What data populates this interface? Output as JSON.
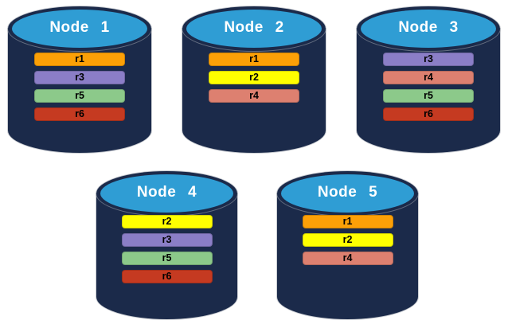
{
  "diagram": {
    "description": "Database nodes with replica placement",
    "colors": {
      "cylinder_body": "#1B2A4A",
      "cylinder_cap": "#2F9DD4",
      "cap_text": "#FFFFFF",
      "bar_text": "#000000",
      "background": "#FFFFFF"
    },
    "replica_colors": {
      "r1": "#FCA007",
      "r2": "#FFFF00",
      "r3": "#8B7EC7",
      "r4": "#DD8070",
      "r5": "#8CC98A",
      "r6": "#C53A21"
    },
    "nodes": [
      {
        "id": "node-1",
        "label": "Node 1",
        "row": 1,
        "replicas": [
          "r1",
          "r3",
          "r5",
          "r6"
        ]
      },
      {
        "id": "node-2",
        "label": "Node 2",
        "row": 1,
        "replicas": [
          "r1",
          "r2",
          "r4"
        ]
      },
      {
        "id": "node-3",
        "label": "Node 3",
        "row": 1,
        "replicas": [
          "r3",
          "r4",
          "r5",
          "r6"
        ]
      },
      {
        "id": "node-4",
        "label": "Node 4",
        "row": 2,
        "replicas": [
          "r2",
          "r3",
          "r5",
          "r6"
        ]
      },
      {
        "id": "node-5",
        "label": "Node 5",
        "row": 2,
        "replicas": [
          "r1",
          "r2",
          "r4"
        ]
      }
    ]
  }
}
